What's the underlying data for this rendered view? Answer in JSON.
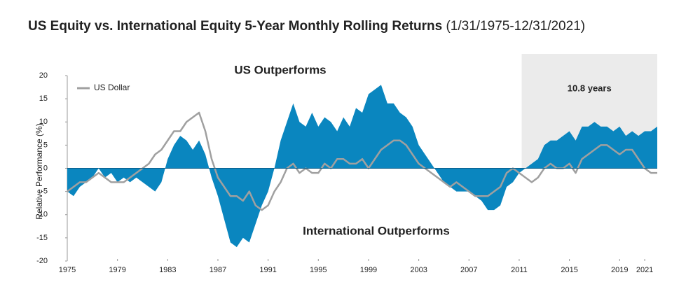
{
  "chart_data": {
    "type": "area",
    "title": "US Equity vs. International Equity 5-Year Monthly Rolling Returns",
    "subtitle": "(1/31/1975-12/31/2021)",
    "y_label": "Relative Performance (%)",
    "annotations": [
      "US Outperforms",
      "International Outperforms"
    ],
    "highlight": {
      "x": [
        2011.2,
        2022
      ],
      "label": "10.8 years",
      "color": "#ebebeb"
    },
    "x": [
      1975,
      1975.5,
      1976,
      1976.5,
      1977,
      1977.5,
      1978,
      1978.5,
      1979,
      1979.5,
      1980,
      1980.5,
      1981,
      1981.5,
      1982,
      1982.5,
      1983,
      1983.5,
      1984,
      1984.5,
      1985,
      1985.5,
      1986,
      1986.5,
      1987,
      1987.5,
      1988,
      1988.5,
      1989,
      1989.5,
      1990,
      1990.5,
      1991,
      1991.5,
      1992,
      1992.5,
      1993,
      1993.5,
      1994,
      1994.5,
      1995,
      1995.5,
      1996,
      1996.5,
      1997,
      1997.5,
      1998,
      1998.5,
      1999,
      1999.5,
      2000,
      2000.5,
      2001,
      2001.5,
      2002,
      2002.5,
      2003,
      2003.5,
      2004,
      2004.5,
      2005,
      2005.5,
      2006,
      2006.5,
      2007,
      2007.5,
      2008,
      2008.5,
      2009,
      2009.5,
      2010,
      2010.5,
      2011,
      2011.5,
      2012,
      2012.5,
      2013,
      2013.5,
      2014,
      2014.5,
      2015,
      2015.5,
      2016,
      2016.5,
      2017,
      2017.5,
      2018,
      2018.5,
      2019,
      2019.5,
      2020,
      2020.5,
      2021,
      2021.5,
      2022
    ],
    "series": [
      {
        "color": "#0a86bf",
        "values": [
          -5,
          -6,
          -4,
          -3,
          -2,
          0,
          -2,
          -1,
          -3,
          -2,
          -3,
          -2,
          -3,
          -4,
          -5,
          -3,
          2,
          5,
          7,
          6,
          4,
          6,
          3,
          -2,
          -6,
          -11,
          -16,
          -17,
          -15,
          -16,
          -12,
          -8,
          -5,
          0,
          6,
          10,
          14,
          10,
          9,
          12,
          9,
          11,
          10,
          8,
          11,
          9,
          13,
          12,
          16,
          17,
          18,
          14,
          14,
          12,
          11,
          9,
          5,
          3,
          1,
          -1,
          -3,
          -4,
          -5,
          -5,
          -5,
          -6,
          -7,
          -9,
          -9,
          -8,
          -4,
          -3,
          -1,
          0,
          1,
          2,
          5,
          6,
          6,
          7,
          8,
          6,
          9,
          9,
          10,
          9,
          9,
          8,
          9,
          7,
          8,
          7,
          8,
          8,
          9
        ]
      },
      {
        "name": "US Dollar",
        "color": "#a0a0a0",
        "values": [
          -5,
          -4,
          -3,
          -3,
          -2,
          -1,
          -2,
          -3,
          -3,
          -3,
          -2,
          -1,
          0,
          1,
          3,
          4,
          6,
          8,
          8,
          10,
          11,
          12,
          8,
          2,
          -2,
          -4,
          -6,
          -6,
          -7,
          -5,
          -8,
          -9,
          -8,
          -5,
          -3,
          0,
          1,
          -1,
          0,
          -1,
          -1,
          1,
          0,
          2,
          2,
          1,
          1,
          2,
          0,
          2,
          4,
          5,
          6,
          6,
          5,
          3,
          1,
          0,
          -1,
          -2,
          -3,
          -4,
          -3,
          -4,
          -5,
          -6,
          -6,
          -6,
          -5,
          -4,
          -1,
          0,
          -1,
          -2,
          -3,
          -2,
          0,
          1,
          0,
          0,
          1,
          -1,
          2,
          3,
          4,
          5,
          5,
          4,
          3,
          4,
          4,
          2,
          0,
          -1,
          -1
        ]
      }
    ],
    "xlim": [
      1975,
      2022
    ],
    "ylim": [
      -20,
      20
    ],
    "xticks": [
      1975,
      1979,
      1983,
      1987,
      1991,
      1995,
      1999,
      2003,
      2007,
      2011,
      2015,
      2019,
      2021
    ],
    "yticks": [
      -20,
      -15,
      -10,
      -5,
      0,
      5,
      10,
      15,
      20
    ],
    "legend": "top-left"
  }
}
